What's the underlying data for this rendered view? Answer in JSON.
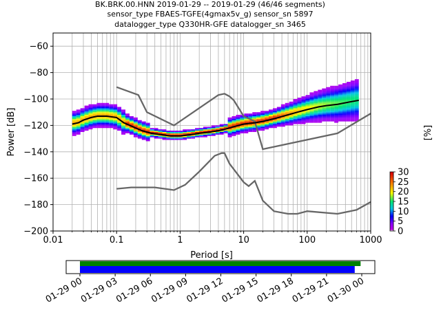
{
  "title_lines": [
    "BK.BRK.00.HNN   2019-01-29 -- 2019-01-29  (46/46 segments)",
    "sensor_type FBAES-TGFE(4gmax5v_g) sensor_sn 5897",
    "datalogger_type Q330HR-GFE datalogger_sn 3465"
  ],
  "colors": {
    "noise_model": "#666666",
    "mean_curve": "#000000",
    "coverage_green": "#008000",
    "coverage_blue": "#0000ff"
  },
  "colorbar": {
    "label": "[%]",
    "ticks": [
      "0",
      "5",
      "10",
      "15",
      "20",
      "25",
      "30"
    ],
    "range": [
      0,
      30
    ],
    "colormap": "pqlx"
  },
  "coverage": {
    "tick_labels": [
      "01-29 00",
      "01-29 03",
      "01-29 06",
      "01-29 09",
      "01-29 12",
      "01-29 15",
      "01-29 18",
      "01-29 21",
      "01-30 00"
    ],
    "green_span_hours": [
      0,
      23.9
    ],
    "blue_span_hours": [
      0,
      23.4
    ]
  },
  "chart_data": {
    "type": "heatmap",
    "subtype": "probabilistic power spectral density",
    "xlabel": "Period [s]",
    "ylabel": "Power [dB]",
    "x_scale": "log",
    "xlim": [
      0.01,
      1000
    ],
    "ylim": [
      -200,
      -50
    ],
    "xticks": [
      "0.01",
      "0.1",
      "1",
      "10",
      "100",
      "1000"
    ],
    "yticks": [
      "−60",
      "−80",
      "−100",
      "−120",
      "−140",
      "−160",
      "−180",
      "−200"
    ],
    "grid": true,
    "series": [
      {
        "period": [
          0.02,
          0.025,
          0.03,
          0.04,
          0.05,
          0.07,
          0.1,
          0.13,
          0.18,
          0.25,
          0.35,
          0.5,
          0.7,
          1,
          1.5,
          2,
          3,
          4,
          5,
          7,
          10,
          15,
          20,
          30,
          50,
          70,
          100,
          150,
          200,
          300,
          500,
          650
        ],
        "power_db": [
          -119,
          -118,
          -116,
          -114,
          -113,
          -113,
          -114,
          -118,
          -121,
          -124,
          -126,
          -127,
          -128,
          -128,
          -127,
          -126,
          -125,
          -124,
          -123,
          -121,
          -119,
          -118,
          -117,
          -115,
          -112,
          -110,
          -108,
          -106,
          -105,
          -104,
          -102,
          -101
        ]
      },
      {
        "period": [
          0.1,
          0.22,
          0.3,
          0.8,
          4,
          5,
          6,
          7,
          10,
          15,
          20,
          300,
          1000
        ],
        "power_db": [
          -91,
          -97,
          -110,
          -120,
          -97,
          -96,
          -98,
          -101,
          -113,
          -117,
          -138,
          -126,
          -111
        ]
      },
      {
        "period": [
          0.1,
          0.17,
          0.4,
          0.8,
          1.2,
          2,
          3.5,
          4.5,
          5,
          6,
          10,
          12,
          15,
          20,
          30,
          50,
          70,
          100,
          300,
          600,
          1000
        ],
        "power_db": [
          -168,
          -167,
          -167,
          -169,
          -165,
          -155,
          -143,
          -141,
          -141,
          -149,
          -163,
          -166,
          -162,
          -177,
          -185,
          -187,
          -187,
          -185,
          -187,
          -184,
          -178
        ]
      }
    ]
  }
}
